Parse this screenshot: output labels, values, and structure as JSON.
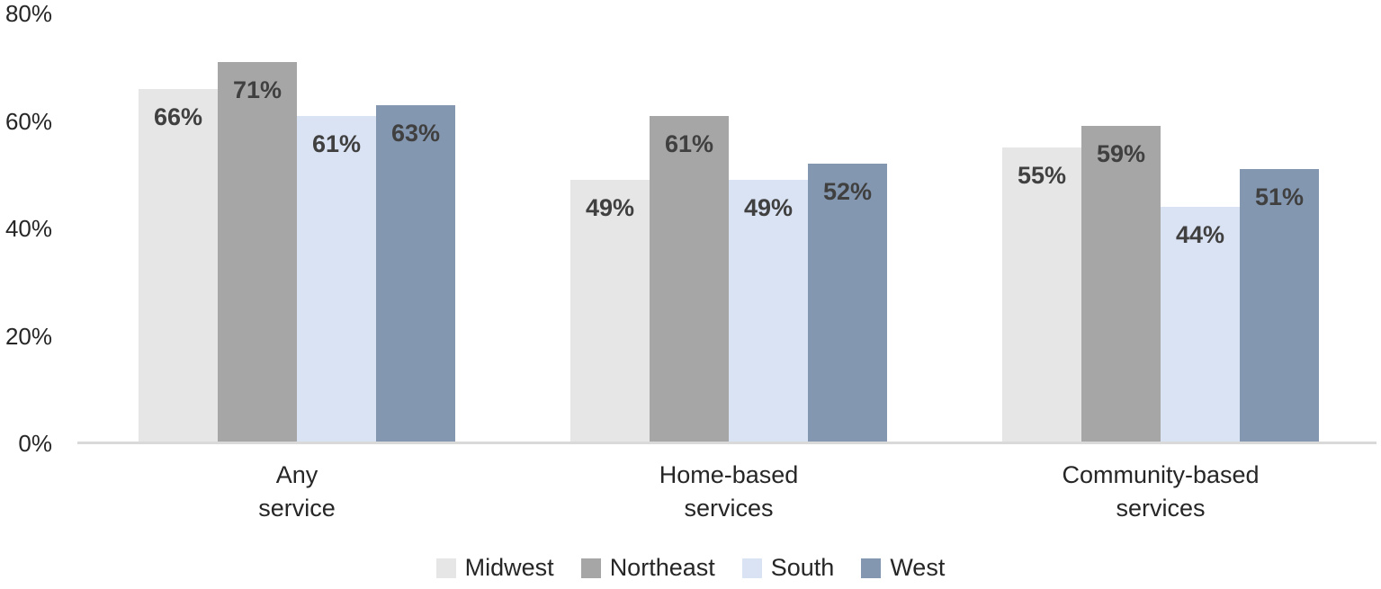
{
  "chart_data": {
    "type": "bar",
    "title": "",
    "xlabel": "",
    "ylabel": "",
    "categories": [
      "Any\nservice",
      "Home-based\nservices",
      "Community-based\nservices"
    ],
    "series": [
      {
        "name": "Midwest",
        "color": "#e6e6e6",
        "values": [
          66,
          49,
          55
        ]
      },
      {
        "name": "Northeast",
        "color": "#a6a6a6",
        "values": [
          71,
          61,
          59
        ]
      },
      {
        "name": "South",
        "color": "#dae3f3",
        "values": [
          61,
          49,
          44
        ]
      },
      {
        "name": "West",
        "color": "#8497b0",
        "values": [
          63,
          52,
          51
        ]
      }
    ],
    "value_label_suffix": "%",
    "ylim": [
      0,
      80
    ],
    "yticks": [
      {
        "value": 80,
        "label": "80%"
      },
      {
        "value": 60,
        "label": "60%"
      },
      {
        "value": 40,
        "label": "40%"
      },
      {
        "value": 20,
        "label": "20%"
      },
      {
        "value": 0,
        "label": "0%"
      }
    ],
    "grid": false,
    "legend_position": "bottom",
    "colors": {
      "value_label": "#404040",
      "axis_line": "#d9d9d9",
      "tick_text": "#262626"
    }
  }
}
